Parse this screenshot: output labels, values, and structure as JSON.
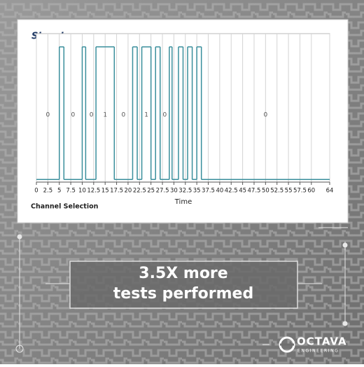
{
  "chart_data": {
    "type": "step",
    "title": "Signals",
    "x_label": "Time",
    "footer_label": "Channel Selection",
    "x": [
      0,
      5,
      6,
      10,
      10.75,
      13,
      17,
      21,
      22,
      23,
      25,
      26,
      27,
      29,
      29.6,
      31,
      32,
      33,
      34,
      35,
      36,
      64
    ],
    "values": [
      0,
      1,
      0,
      1,
      0,
      1,
      0,
      1,
      0,
      1,
      0,
      1,
      0,
      1,
      0,
      1,
      0,
      1,
      0,
      1,
      0,
      0
    ],
    "color": "#3a8f9c",
    "annotations": [
      {
        "x": 2.5,
        "text": "0"
      },
      {
        "x": 8,
        "text": "0"
      },
      {
        "x": 12,
        "text": "0"
      },
      {
        "x": 15,
        "text": "1"
      },
      {
        "x": 19,
        "text": "0"
      },
      {
        "x": 24,
        "text": "1"
      },
      {
        "x": 28,
        "text": "0"
      },
      {
        "x": 50,
        "text": "0"
      }
    ],
    "xlim": [
      0,
      64
    ],
    "xticks": [
      0,
      2.5,
      5,
      7.5,
      10,
      12.5,
      15,
      17.5,
      20,
      22.5,
      25,
      27.5,
      30,
      32.5,
      35,
      37.5,
      40,
      42.5,
      45,
      47.5,
      50,
      52.5,
      55,
      57.5,
      60,
      64
    ],
    "ylim": [
      -0.02,
      1.1
    ],
    "grid": true
  },
  "banner": {
    "lines": [
      "3.5X more",
      "tests performed"
    ]
  },
  "logo": {
    "name": "OCTAVA",
    "tagline": "ENGINEERING"
  }
}
